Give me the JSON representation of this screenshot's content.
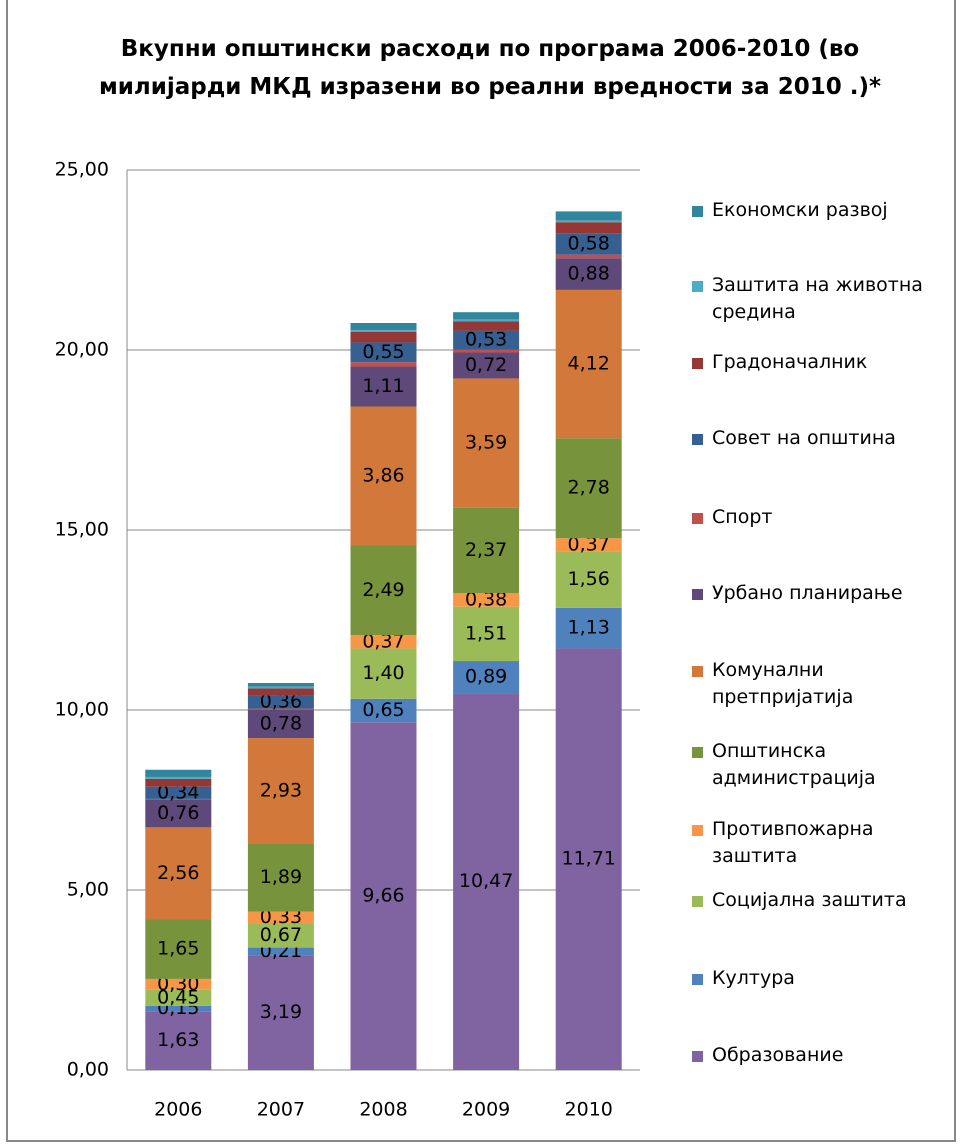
{
  "chart_data": {
    "type": "stacked_bar",
    "title": "Вкупни општински расходи по програма 2006-2010 (во милијарди МКД изразени во реални вредности за 2010 .)*",
    "categories": [
      "2006",
      "2007",
      "2008",
      "2009",
      "2010"
    ],
    "ylim": [
      0,
      25
    ],
    "yticks": [
      {
        "value": 0,
        "label": "0,00"
      },
      {
        "value": 5,
        "label": "5,00"
      },
      {
        "value": 10,
        "label": "10,00"
      },
      {
        "value": 15,
        "label": "15,00"
      },
      {
        "value": 20,
        "label": "20,00"
      },
      {
        "value": 25,
        "label": "25,00"
      }
    ],
    "grid": true,
    "legend": "right",
    "series": [
      {
        "name": "Образование",
        "color": "#8064a2",
        "values": [
          1.63,
          3.19,
          9.66,
          10.47,
          11.71
        ],
        "value_labels": [
          "1,63",
          "3,19",
          "9,66",
          "10,47",
          "11,71"
        ]
      },
      {
        "name": "Култура",
        "color": "#4f81bd",
        "values": [
          0.15,
          0.21,
          0.65,
          0.89,
          1.13
        ],
        "value_labels": [
          "0,15",
          "0,21",
          "0,65",
          "0,89",
          "1,13"
        ]
      },
      {
        "name": "Социјална заштита",
        "color": "#9bbb59",
        "values": [
          0.45,
          0.67,
          1.4,
          1.51,
          1.56
        ],
        "value_labels": [
          "0,45",
          "0,67",
          "1,40",
          "1,51",
          "1,56"
        ]
      },
      {
        "name": "Противпожарна заштита",
        "color": "#f79646",
        "values": [
          0.3,
          0.33,
          0.37,
          0.38,
          0.37
        ],
        "value_labels": [
          "0,30",
          "0,33",
          "0,37",
          "0,38",
          "0,37"
        ]
      },
      {
        "name": "Општинска администрација",
        "color": "#77933c",
        "values": [
          1.65,
          1.89,
          2.49,
          2.37,
          2.78
        ],
        "value_labels": [
          "1,65",
          "1,89",
          "2,49",
          "2,37",
          "2,78"
        ]
      },
      {
        "name": "Комунални претпријатија",
        "color": "#d2783a",
        "values": [
          2.56,
          2.93,
          3.86,
          3.59,
          4.12
        ],
        "value_labels": [
          "2,56",
          "2,93",
          "3,86",
          "3,59",
          "4,12"
        ]
      },
      {
        "name": "Урбано планирање",
        "color": "#5f497a",
        "values": [
          0.76,
          0.78,
          1.11,
          0.72,
          0.88
        ],
        "value_labels": [
          "0,76",
          "0,78",
          "1,11",
          "0,72",
          "0,88"
        ]
      },
      {
        "name": "Спорт",
        "color": "#c0504d",
        "values": [
          0.03,
          0.04,
          0.12,
          0.08,
          0.1
        ]
      },
      {
        "name": "Совет на општина",
        "color": "#366092",
        "values": [
          0.34,
          0.36,
          0.55,
          0.53,
          0.58
        ],
        "value_labels": [
          "0,34",
          "0,36",
          "0,55",
          "0,53",
          "0,58"
        ]
      },
      {
        "name": "Градоначалник",
        "color": "#953735",
        "values": [
          0.22,
          0.2,
          0.29,
          0.26,
          0.32
        ]
      },
      {
        "name": "Заштита на животна средина",
        "color": "#4bacc6",
        "values": [
          0.05,
          0.05,
          0.05,
          0.05,
          0.05
        ]
      },
      {
        "name": "Економски развој",
        "color": "#31859c",
        "values": [
          0.2,
          0.1,
          0.2,
          0.2,
          0.25
        ]
      }
    ]
  }
}
